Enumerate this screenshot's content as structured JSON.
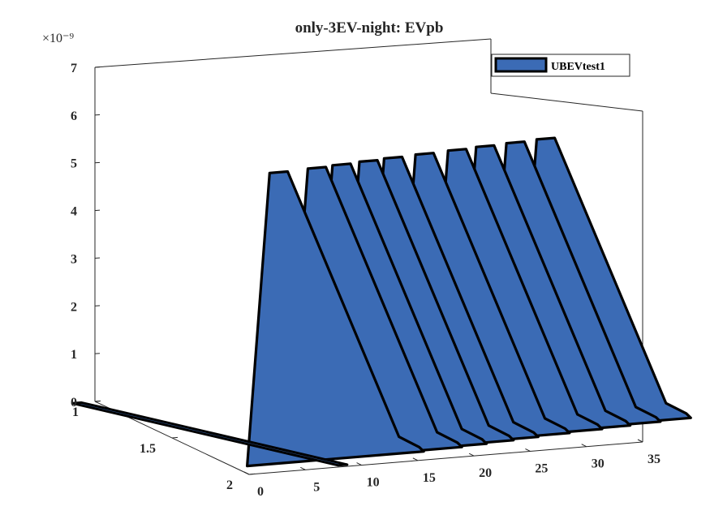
{
  "chart_data": {
    "type": "area",
    "title": "only-3EV-night: EVpb",
    "exponent_label": "×10⁻⁹",
    "x": [
      0,
      35
    ],
    "x_ticks": [
      "0",
      "5",
      "10",
      "15",
      "20",
      "25",
      "30",
      "35"
    ],
    "y_ticks": [
      "1",
      "1.5",
      "2"
    ],
    "z_ticks": [
      "0",
      "1",
      "2",
      "3",
      "4",
      "5",
      "6",
      "7"
    ],
    "zlim": [
      0,
      7
    ],
    "series": [
      {
        "name": "UBEVtest1",
        "color": "#3b6bb5",
        "peaks": [
          {
            "x": 3.2,
            "z": 6.1
          },
          {
            "x": 6.8,
            "z": 6.1
          },
          {
            "x": 9.2,
            "z": 6.1
          },
          {
            "x": 11.8,
            "z": 6.1
          },
          {
            "x": 14.2,
            "z": 6.1
          },
          {
            "x": 17.2,
            "z": 6.1
          },
          {
            "x": 20.3,
            "z": 6.1
          },
          {
            "x": 23.0,
            "z": 6.1
          },
          {
            "x": 25.9,
            "z": 6.1
          },
          {
            "x": 28.8,
            "z": 6.1
          }
        ]
      }
    ],
    "legend": {
      "placement": "top-right"
    },
    "grid": false
  }
}
